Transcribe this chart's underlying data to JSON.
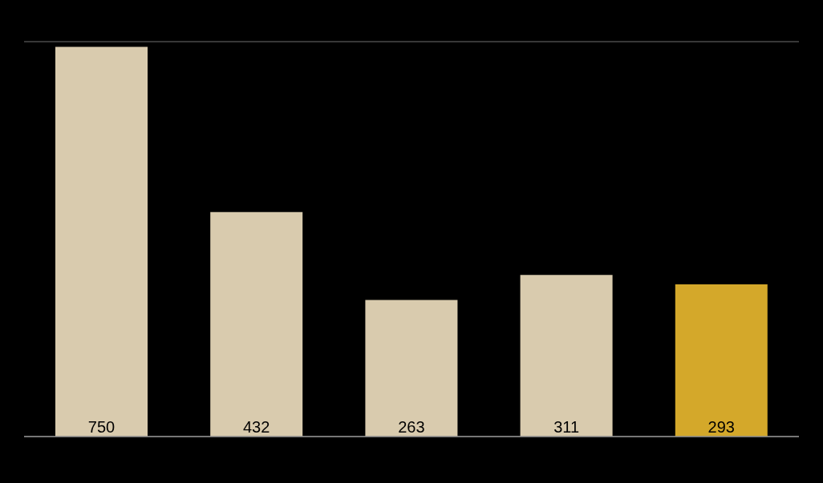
{
  "chart_data": {
    "type": "bar",
    "categories": [
      null,
      null,
      null,
      null,
      null
    ],
    "values": [
      750,
      432,
      263,
      311,
      293
    ],
    "colors": [
      "#d9cbae",
      "#d9cbae",
      "#d9cbae",
      "#d9cbae",
      "#d4a82a"
    ],
    "grid": "y",
    "data_labels": true
  }
}
